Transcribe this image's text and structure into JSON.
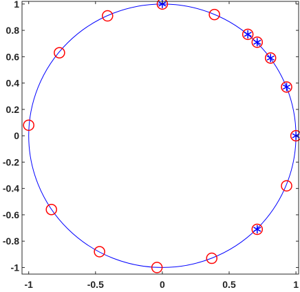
{
  "chart_data": {
    "type": "scatter",
    "xlim": [
      -1.05,
      1.02
    ],
    "ylim": [
      -1.05,
      1.02
    ],
    "x_ticks": [
      {
        "value": -1,
        "label": "-1"
      },
      {
        "value": -0.5,
        "label": "-0.5"
      },
      {
        "value": 0,
        "label": "0"
      },
      {
        "value": 0.5,
        "label": "0.5"
      },
      {
        "value": 1,
        "label": "1"
      }
    ],
    "y_ticks": [
      {
        "value": 1,
        "label": "1"
      },
      {
        "value": 0.8,
        "label": "0.8"
      },
      {
        "value": 0.6,
        "label": "0.6"
      },
      {
        "value": 0.4,
        "label": "0.4"
      },
      {
        "value": 0.2,
        "label": "0.2"
      },
      {
        "value": 0,
        "label": "0"
      },
      {
        "value": -0.2,
        "label": "-0.2"
      },
      {
        "value": -0.4,
        "label": "-0.4"
      },
      {
        "value": -0.6,
        "label": "-0.6"
      },
      {
        "value": -0.8,
        "label": "-0.8"
      },
      {
        "value": -1,
        "label": "-1"
      }
    ],
    "grid": false,
    "unit_circle": {
      "center": [
        0,
        0
      ],
      "radius": 1,
      "color": "#0000ff"
    },
    "series": [
      {
        "marker": "circle",
        "color": "#ff0000",
        "points": [
          [
            0.0,
            1.0
          ],
          [
            0.39,
            0.92
          ],
          [
            -0.41,
            0.91
          ],
          [
            0.64,
            0.77
          ],
          [
            0.71,
            0.71
          ],
          [
            0.81,
            0.59
          ],
          [
            -0.77,
            0.63
          ],
          [
            0.93,
            0.37
          ],
          [
            1.0,
            0.0
          ],
          [
            -1.0,
            0.08
          ],
          [
            0.93,
            -0.38
          ],
          [
            -0.83,
            -0.56
          ],
          [
            0.71,
            -0.71
          ],
          [
            -0.47,
            -0.88
          ],
          [
            0.37,
            -0.93
          ],
          [
            -0.04,
            -1.0
          ]
        ]
      },
      {
        "marker": "asterisk",
        "color": "#0000ff",
        "points": [
          [
            0.0,
            1.0
          ],
          [
            0.64,
            0.77
          ],
          [
            0.71,
            0.71
          ],
          [
            0.81,
            0.59
          ],
          [
            0.93,
            0.37
          ],
          [
            1.0,
            0.0
          ],
          [
            0.71,
            -0.71
          ]
        ]
      }
    ]
  },
  "colors": {
    "axes": "#262626",
    "circle_marker": "#ff0000",
    "star_marker": "#0000ff"
  }
}
